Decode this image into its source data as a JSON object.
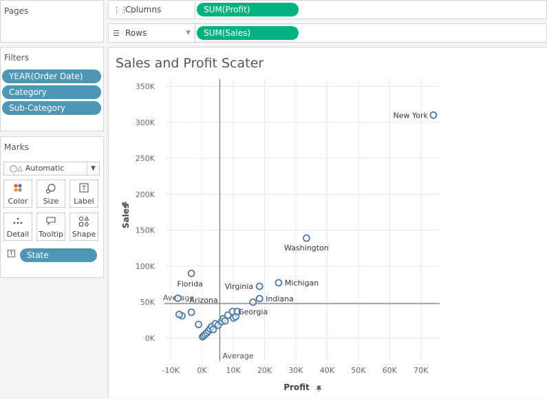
{
  "pages": {
    "title": "Pages"
  },
  "filters": {
    "title": "Filters",
    "items": [
      "YEAR(Order Date)",
      "Category",
      "Sub-Category"
    ]
  },
  "marks": {
    "title": "Marks",
    "mark_type": "Automatic",
    "buttons": [
      {
        "label": "Color",
        "icon": "color-dots-icon"
      },
      {
        "label": "Size",
        "icon": "size-icon"
      },
      {
        "label": "Label",
        "icon": "label-icon"
      },
      {
        "label": "Detail",
        "icon": "detail-dots-icon"
      },
      {
        "label": "Tooltip",
        "icon": "tooltip-icon"
      },
      {
        "label": "Shape",
        "icon": "shape-icon"
      }
    ],
    "state_pill": "State"
  },
  "shelves": {
    "columns_label": "Columns",
    "columns_pill": "SUM(Profit)",
    "rows_label": "Rows",
    "rows_pill": "SUM(Sales)"
  },
  "colors": {
    "accent_green": "#00b180",
    "pill_blue": "#4d96b4",
    "mark": "#4e79a7"
  },
  "chart_data": {
    "type": "scatter",
    "title": "Sales and Profit Scater",
    "xlabel": "Profit",
    "ylabel": "Sales",
    "xlim": [
      -12000,
      76000
    ],
    "ylim": [
      -32000,
      360000
    ],
    "xticks": [
      -10000,
      0,
      10000,
      20000,
      30000,
      40000,
      50000,
      60000,
      70000
    ],
    "xtick_labels": [
      "-10K",
      "0K",
      "10K",
      "20K",
      "30K",
      "40K",
      "50K",
      "60K",
      "70K"
    ],
    "yticks": [
      0,
      50000,
      100000,
      150000,
      200000,
      250000,
      300000,
      350000
    ],
    "ytick_labels": [
      "0K",
      "50K",
      "100K",
      "150K",
      "200K",
      "250K",
      "300K",
      "350K"
    ],
    "reference_lines": [
      {
        "axis": "x",
        "value": 5700,
        "label": "Average"
      },
      {
        "axis": "y",
        "value": 48000,
        "label": "Average"
      }
    ],
    "points": [
      {
        "x": 74000,
        "y": 310000,
        "label": "New York"
      },
      {
        "x": 33400,
        "y": 139000,
        "label": "Washington"
      },
      {
        "x": 24500,
        "y": 77000,
        "label": "Michigan"
      },
      {
        "x": 18400,
        "y": 72000,
        "label": "Virginia"
      },
      {
        "x": 18400,
        "y": 55000,
        "label": "Indiana"
      },
      {
        "x": 16300,
        "y": 50000,
        "label": "Georgia"
      },
      {
        "x": -3400,
        "y": 90000,
        "label": "Florida"
      },
      {
        "x": -3400,
        "y": 36000,
        "label": "Arizona"
      },
      {
        "x": -7700,
        "y": 55500,
        "label": ""
      },
      {
        "x": -6400,
        "y": 31000,
        "label": ""
      },
      {
        "x": -7300,
        "y": 33000,
        "label": ""
      },
      {
        "x": -1100,
        "y": 19000,
        "label": ""
      },
      {
        "x": 200,
        "y": 2000,
        "label": ""
      },
      {
        "x": 600,
        "y": 3500,
        "label": ""
      },
      {
        "x": 1100,
        "y": 5500,
        "label": ""
      },
      {
        "x": 1600,
        "y": 7500,
        "label": ""
      },
      {
        "x": 2100,
        "y": 10000,
        "label": ""
      },
      {
        "x": 2600,
        "y": 13000,
        "label": ""
      },
      {
        "x": 3100,
        "y": 16000,
        "label": ""
      },
      {
        "x": 3600,
        "y": 12000,
        "label": ""
      },
      {
        "x": 4300,
        "y": 20000,
        "label": ""
      },
      {
        "x": 5200,
        "y": 18000,
        "label": ""
      },
      {
        "x": 6300,
        "y": 23000,
        "label": ""
      },
      {
        "x": 6800,
        "y": 27000,
        "label": ""
      },
      {
        "x": 7400,
        "y": 24000,
        "label": ""
      },
      {
        "x": 8300,
        "y": 32000,
        "label": ""
      },
      {
        "x": 9800,
        "y": 37000,
        "label": ""
      },
      {
        "x": 10100,
        "y": 28000,
        "label": ""
      },
      {
        "x": 10800,
        "y": 30000,
        "label": ""
      },
      {
        "x": 11300,
        "y": 37000,
        "label": ""
      }
    ]
  }
}
